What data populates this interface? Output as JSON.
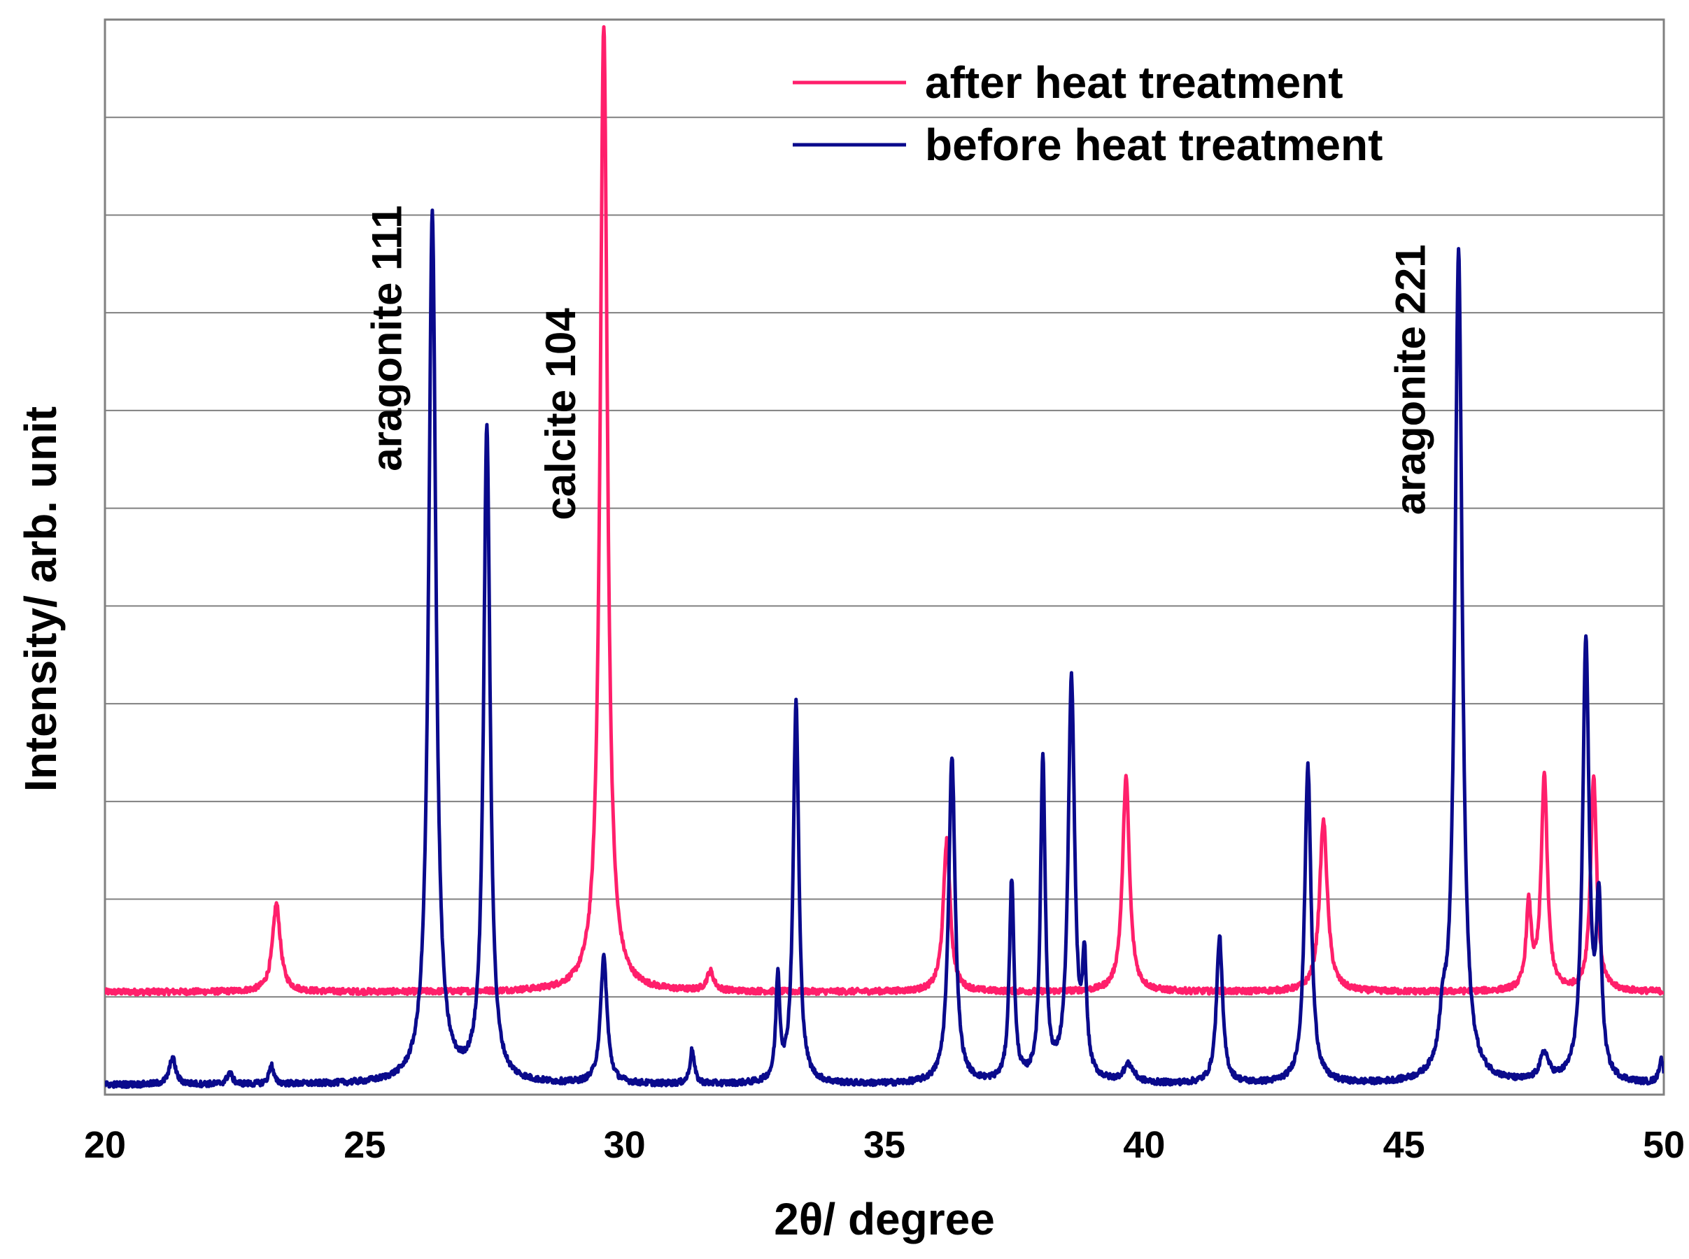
{
  "chart_data": {
    "type": "line",
    "title": "",
    "xlabel": "2θ/ degree",
    "ylabel": "Intensity/ arb. unit",
    "xlim": [
      20,
      50
    ],
    "ylim": [
      0,
      11
    ],
    "x_ticks": [
      20,
      25,
      30,
      35,
      40,
      45,
      50
    ],
    "x_tick_labels": [
      "20",
      "25",
      "30",
      "35",
      "40",
      "45",
      "50"
    ],
    "y_gridlines": [
      1,
      2,
      3,
      4,
      5,
      6,
      7,
      8,
      9,
      10
    ],
    "grid": true,
    "legend_position": "top-right",
    "series": [
      {
        "name": "after heat treatment",
        "color": "#ff1f6b",
        "baseline": 1.05,
        "peaks": [
          {
            "x": 23.3,
            "height": 0.9,
            "width": 0.09
          },
          {
            "x": 29.6,
            "height": 9.9,
            "width": 0.085
          },
          {
            "x": 31.65,
            "height": 0.2,
            "width": 0.08
          },
          {
            "x": 36.2,
            "height": 1.55,
            "width": 0.08
          },
          {
            "x": 39.65,
            "height": 2.2,
            "width": 0.08
          },
          {
            "x": 43.45,
            "height": 1.75,
            "width": 0.09
          },
          {
            "x": 47.4,
            "height": 0.85,
            "width": 0.06
          },
          {
            "x": 47.7,
            "height": 2.2,
            "width": 0.07
          },
          {
            "x": 48.65,
            "height": 2.2,
            "width": 0.07
          }
        ]
      },
      {
        "name": "before heat treatment",
        "color": "#0a0a8c",
        "baseline": 0.1,
        "peaks": [
          {
            "x": 21.3,
            "height": 0.28,
            "width": 0.07
          },
          {
            "x": 22.4,
            "height": 0.12,
            "width": 0.06
          },
          {
            "x": 23.2,
            "height": 0.2,
            "width": 0.05
          },
          {
            "x": 26.3,
            "height": 8.9,
            "width": 0.085
          },
          {
            "x": 27.35,
            "height": 6.7,
            "width": 0.075
          },
          {
            "x": 29.6,
            "height": 1.3,
            "width": 0.075
          },
          {
            "x": 31.3,
            "height": 0.35,
            "width": 0.05
          },
          {
            "x": 32.95,
            "height": 1.05,
            "width": 0.045
          },
          {
            "x": 33.3,
            "height": 3.9,
            "width": 0.065
          },
          {
            "x": 36.3,
            "height": 3.35,
            "width": 0.075
          },
          {
            "x": 37.45,
            "height": 2.05,
            "width": 0.055
          },
          {
            "x": 38.05,
            "height": 3.3,
            "width": 0.055
          },
          {
            "x": 38.6,
            "height": 4.1,
            "width": 0.075
          },
          {
            "x": 38.85,
            "height": 1.1,
            "width": 0.05
          },
          {
            "x": 39.7,
            "height": 0.18,
            "width": 0.12
          },
          {
            "x": 41.45,
            "height": 1.5,
            "width": 0.07
          },
          {
            "x": 43.15,
            "height": 3.25,
            "width": 0.075
          },
          {
            "x": 45.75,
            "height": 0.45,
            "width": 0.08
          },
          {
            "x": 46.05,
            "height": 8.5,
            "width": 0.085
          },
          {
            "x": 47.7,
            "height": 0.28,
            "width": 0.1
          },
          {
            "x": 48.5,
            "height": 4.5,
            "width": 0.075
          },
          {
            "x": 48.75,
            "height": 1.7,
            "width": 0.06
          },
          {
            "x": 49.95,
            "height": 0.25,
            "width": 0.05
          }
        ]
      }
    ],
    "annotations": [
      {
        "text": "aragonite 111",
        "x": 25.7,
        "y_top": 9.1
      },
      {
        "text": "calcite 104",
        "x": 29.05,
        "y_top": 8.05
      },
      {
        "text": "aragonite 221",
        "x": 45.4,
        "y_top": 8.7
      }
    ]
  }
}
